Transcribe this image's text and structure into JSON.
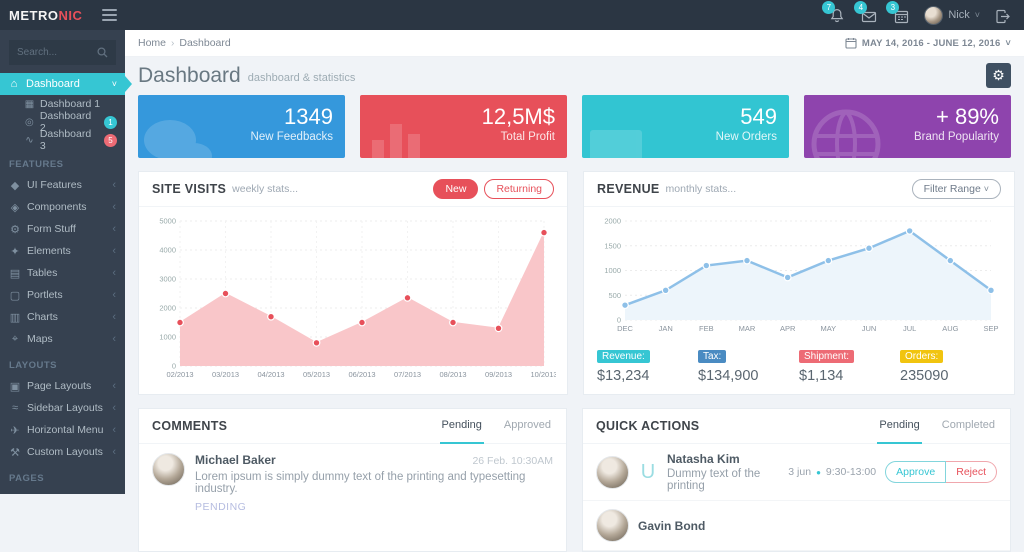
{
  "colors": {
    "accent": "#36c6d3",
    "red": "#e7505a",
    "blue": "#3598dc",
    "teal": "#32c5d2",
    "purple": "#8e44ad"
  },
  "header": {
    "logo_part1": "METRO",
    "logo_part2": "NIC",
    "notifications": [
      {
        "icon": "bell-icon",
        "count": "7"
      },
      {
        "icon": "envelope-icon",
        "count": "4"
      },
      {
        "icon": "calendar-icon",
        "count": "3"
      }
    ],
    "user": {
      "name": "Nick",
      "chevron": "˅"
    }
  },
  "sidebar": {
    "search_placeholder": "Search...",
    "active_item": {
      "label": "Dashboard",
      "chevron": "˅"
    },
    "item_chevron": "‹",
    "sub_items": [
      {
        "label": "Dashboard 1",
        "glyph": "▦"
      },
      {
        "label": "Dashboard 2",
        "glyph": "◎",
        "badge": "1",
        "badge_color": "#36c6d3"
      },
      {
        "label": "Dashboard 3",
        "glyph": "∿",
        "badge": "5",
        "badge_color": "#ed6b75"
      }
    ],
    "sections": [
      {
        "heading": "FEATURES",
        "items": [
          {
            "label": "UI Features",
            "glyph": "◆"
          },
          {
            "label": "Components",
            "glyph": "◈"
          },
          {
            "label": "Form Stuff",
            "glyph": "⚙"
          },
          {
            "label": "Elements",
            "glyph": "✦"
          },
          {
            "label": "Tables",
            "glyph": "▤"
          },
          {
            "label": "Portlets",
            "glyph": "▢"
          },
          {
            "label": "Charts",
            "glyph": "▥"
          },
          {
            "label": "Maps",
            "glyph": "⌖"
          }
        ]
      },
      {
        "heading": "LAYOUTS",
        "items": [
          {
            "label": "Page Layouts",
            "glyph": "▣"
          },
          {
            "label": "Sidebar Layouts",
            "glyph": "≈"
          },
          {
            "label": "Horizontal Menu",
            "glyph": "✈"
          },
          {
            "label": "Custom Layouts",
            "glyph": "⚒"
          }
        ]
      },
      {
        "heading": "PAGES",
        "items": []
      }
    ]
  },
  "breadcrumb": {
    "home": "Home",
    "separator": "›",
    "current": "Dashboard"
  },
  "daterange": {
    "label": "MAY 14, 2016 - JUNE 12, 2016",
    "chevron": "˅"
  },
  "page": {
    "title": "Dashboard",
    "subtitle": "dashboard & statistics",
    "gear_glyph": "⚙"
  },
  "stats": [
    {
      "value": "1349",
      "label": "New Feedbacks",
      "color": "#3598dc",
      "icon": "comments-icon"
    },
    {
      "value": "12,5M$",
      "label": "Total Profit",
      "color": "#e7505a",
      "icon": "bar-chart-icon"
    },
    {
      "value": "549",
      "label": "New Orders",
      "color": "#32c5d2",
      "icon": "shopping-cart-icon"
    },
    {
      "value": "+ 89%",
      "label": "Brand Popularity",
      "color": "#8e44ad",
      "icon": "globe-icon"
    }
  ],
  "site_visits": {
    "title": "SITE VISITS",
    "subtitle": "weekly stats...",
    "btn_new": "New",
    "btn_returning": "Returning"
  },
  "revenue": {
    "title": "REVENUE",
    "subtitle": "monthly stats...",
    "filter_label": "Filter Range",
    "filter_chevron": "˅",
    "stats": [
      {
        "label": "Revenue:",
        "value": "$13,234",
        "color": "#36c6d3"
      },
      {
        "label": "Tax:",
        "value": "$134,900",
        "color": "#4a8bc2"
      },
      {
        "label": "Shipment:",
        "value": "$1,134",
        "color": "#ed6b75"
      },
      {
        "label": "Orders:",
        "value": "235090",
        "color": "#f1c40f"
      }
    ]
  },
  "chart_data": [
    {
      "name": "site-visits",
      "type": "area",
      "title": "SITE VISITS weekly stats",
      "categories": [
        "02/2013",
        "03/2013",
        "04/2013",
        "05/2013",
        "06/2013",
        "07/2013",
        "08/2013",
        "09/2013",
        "10/2013"
      ],
      "values": [
        1500,
        2500,
        1700,
        800,
        1500,
        2350,
        1500,
        1300,
        4600
      ],
      "xlabel": "",
      "ylabel": "",
      "ylim": [
        0,
        5000
      ],
      "ytick": 1000,
      "grid": "both",
      "legend": "none",
      "fill": "#f9c6c9",
      "line": "#f9c6c9",
      "dot": "#e7505a"
    },
    {
      "name": "revenue",
      "type": "line",
      "title": "REVENUE monthly stats",
      "categories": [
        "DEC",
        "JAN",
        "FEB",
        "MAR",
        "APR",
        "MAY",
        "JUN",
        "JUL",
        "AUG",
        "SEP"
      ],
      "values": [
        300,
        600,
        1100,
        1200,
        860,
        1200,
        1450,
        1800,
        1200,
        600
      ],
      "xlabel": "",
      "ylabel": "",
      "ylim": [
        0,
        2000
      ],
      "ytick": 500,
      "grid": "h",
      "legend": "none",
      "fill": "#edf5fb",
      "line": "#8ec0e8",
      "dot": "#8ec0e8"
    }
  ],
  "comments": {
    "title": "COMMENTS",
    "tabs": [
      "Pending",
      "Approved"
    ],
    "active_tab": "Pending",
    "items": [
      {
        "name": "Michael Baker",
        "time": "26 Feb. 10:30AM",
        "text": "Lorem ipsum is simply dummy text of the printing and typesetting industry.",
        "status": "PENDING"
      }
    ]
  },
  "quick_actions": {
    "title": "QUICK ACTIONS",
    "tabs": [
      "Pending",
      "Completed"
    ],
    "active_tab": "Pending",
    "items": [
      {
        "name": "Natasha Kim",
        "text": "Dummy text of the printing",
        "date": "3 jun",
        "dot": "●",
        "time": "9:30-13:00",
        "approve_label": "Approve",
        "reject_label": "Reject",
        "icon_glyph": "U"
      },
      {
        "name": "Gavin Bond"
      }
    ]
  }
}
